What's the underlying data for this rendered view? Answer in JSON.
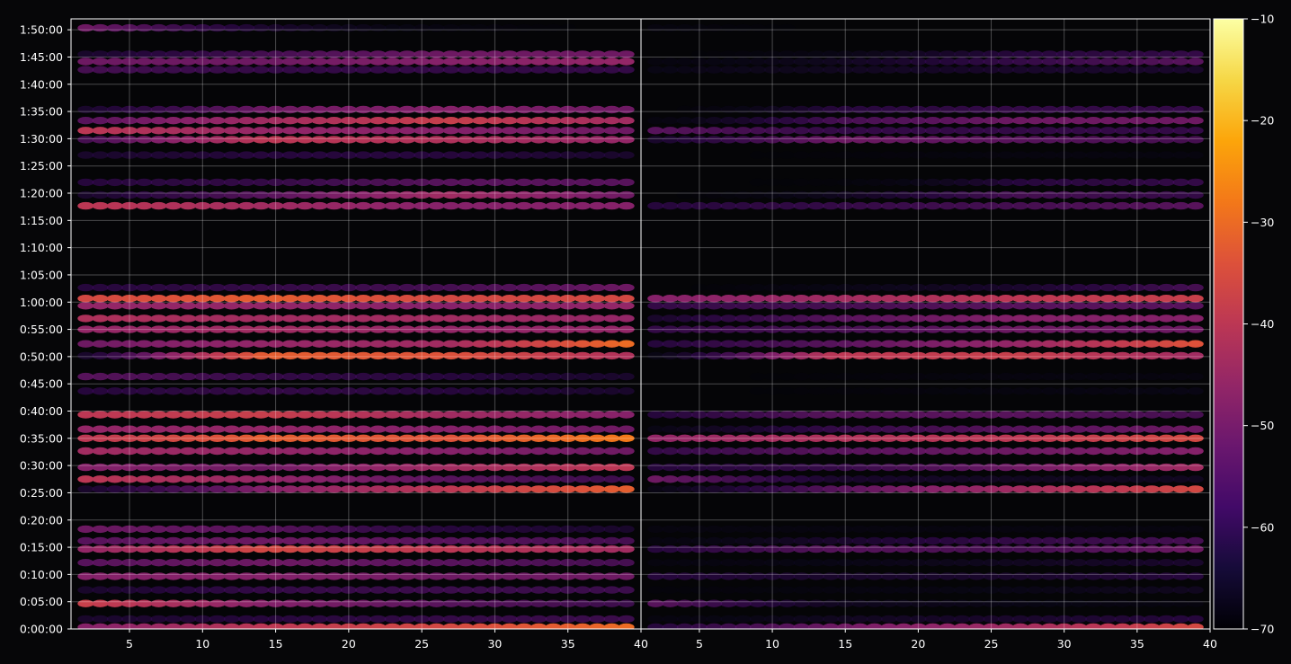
{
  "chart_data": {
    "type": "heatmap",
    "title": "",
    "xlabel": "",
    "ylabel": "",
    "panels": [
      {
        "name": "",
        "xlim": [
          1,
          40
        ],
        "x_ticks": [
          5,
          10,
          15,
          20,
          25,
          30,
          35,
          40
        ]
      },
      {
        "name": "",
        "xlim": [
          1,
          40
        ],
        "x_ticks": [
          5,
          10,
          15,
          20,
          25,
          30,
          35,
          40
        ]
      }
    ],
    "x_tick_labels_left": [
      "5",
      "10",
      "15",
      "20",
      "25",
      "30",
      "35",
      "40"
    ],
    "x_tick_labels_right": [
      "5",
      "10",
      "15",
      "20",
      "25",
      "30",
      "35",
      "40"
    ],
    "y_unit": "seconds",
    "ylim": [
      0,
      6720
    ],
    "y_ticks": [
      0,
      300,
      600,
      900,
      1200,
      1500,
      1800,
      2100,
      2400,
      2700,
      3000,
      3300,
      3600,
      3900,
      4200,
      4500,
      4800,
      5100,
      5400,
      5700,
      6000,
      6300,
      6600
    ],
    "y_tick_labels": [
      "0:00:00",
      "0:05:00",
      "0:10:00",
      "0:15:00",
      "0:20:00",
      "0:25:00",
      "0:30:00",
      "0:35:00",
      "0:40:00",
      "0:45:00",
      "0:50:00",
      "0:55:00",
      "1:00:00",
      "1:05:00",
      "1:10:00",
      "1:15:00",
      "1:20:00",
      "1:25:00",
      "1:30:00",
      "1:35:00",
      "1:40:00",
      "1:45:00",
      "1:50:00"
    ],
    "colorbar": {
      "cmap": "inferno",
      "range": [
        -70,
        -10
      ],
      "ticks": [
        -70,
        -60,
        -50,
        -40,
        -30,
        -20,
        -10
      ],
      "tick_labels": [
        "−70",
        "−60",
        "−50",
        "−40",
        "−30",
        "−20",
        "−10"
      ]
    },
    "bands": [
      {
        "t": 20,
        "left": [
          -48,
          -40,
          -36,
          -30
        ],
        "right": [
          -58,
          -50,
          -44,
          -36
        ]
      },
      {
        "t": 110,
        "left": [
          -60,
          -58,
          -56,
          -55
        ],
        "right": [
          -66,
          -62,
          -60,
          -58
        ]
      },
      {
        "t": 280,
        "left": [
          -38,
          -48,
          -52,
          -55
        ],
        "right": [
          -52,
          -62,
          -64,
          -66
        ]
      },
      {
        "t": 430,
        "left": [
          -60,
          -56,
          -55,
          -55
        ],
        "right": [
          -68,
          -66,
          -64,
          -62
        ]
      },
      {
        "t": 580,
        "left": [
          -48,
          -48,
          -50,
          -50
        ],
        "right": [
          -58,
          -60,
          -60,
          -58
        ]
      },
      {
        "t": 730,
        "left": [
          -52,
          -50,
          -52,
          -54
        ],
        "right": [
          -66,
          -64,
          -62,
          -60
        ]
      },
      {
        "t": 880,
        "left": [
          -46,
          -36,
          -40,
          -44
        ],
        "right": [
          -58,
          -52,
          -54,
          -50
        ]
      },
      {
        "t": 970,
        "left": [
          -52,
          -50,
          -52,
          -54
        ],
        "right": [
          -66,
          -60,
          -56,
          -54
        ]
      },
      {
        "t": 1100,
        "left": [
          -50,
          -52,
          -58,
          -60
        ],
        "right": [
          -66,
          -66,
          -66,
          -66
        ]
      },
      {
        "t": 1540,
        "left": [
          -60,
          -48,
          -40,
          -32
        ],
        "right": [
          -64,
          -52,
          -44,
          -36
        ]
      },
      {
        "t": 1650,
        "left": [
          -40,
          -46,
          -52,
          -55
        ],
        "right": [
          -50,
          -60,
          -62,
          -62
        ]
      },
      {
        "t": 1780,
        "left": [
          -48,
          -50,
          -44,
          -40
        ],
        "right": [
          -58,
          -56,
          -50,
          -44
        ]
      },
      {
        "t": 1960,
        "left": [
          -44,
          -46,
          -48,
          -50
        ],
        "right": [
          -56,
          -52,
          -50,
          -48
        ]
      },
      {
        "t": 2100,
        "left": [
          -40,
          -32,
          -34,
          -28
        ],
        "right": [
          -46,
          -42,
          -40,
          -36
        ]
      },
      {
        "t": 2200,
        "left": [
          -46,
          -46,
          -48,
          -50
        ],
        "right": [
          -64,
          -56,
          -52,
          -50
        ]
      },
      {
        "t": 2360,
        "left": [
          -40,
          -38,
          -44,
          -48
        ],
        "right": [
          -58,
          -52,
          -52,
          -54
        ]
      },
      {
        "t": 2620,
        "left": [
          -58,
          -56,
          -58,
          -60
        ],
        "right": [
          -70,
          -68,
          -66,
          -64
        ]
      },
      {
        "t": 2780,
        "left": [
          -52,
          -56,
          -58,
          -60
        ],
        "right": [
          -70,
          -68,
          -66,
          -66
        ]
      },
      {
        "t": 3010,
        "left": [
          -60,
          -32,
          -34,
          -42
        ],
        "right": [
          -64,
          -40,
          -38,
          -44
        ]
      },
      {
        "t": 3140,
        "left": [
          -50,
          -46,
          -44,
          -30
        ],
        "right": [
          -58,
          -52,
          -46,
          -34
        ]
      },
      {
        "t": 3300,
        "left": [
          -46,
          -44,
          -46,
          -46
        ],
        "right": [
          -56,
          -54,
          -50,
          -50
        ]
      },
      {
        "t": 3420,
        "left": [
          -42,
          -44,
          -44,
          -46
        ],
        "right": [
          -60,
          -52,
          -48,
          -48
        ]
      },
      {
        "t": 3560,
        "left": [
          -46,
          -46,
          -48,
          -46
        ],
        "right": [
          -56,
          -54,
          -52,
          -52
        ]
      },
      {
        "t": 3640,
        "left": [
          -36,
          -32,
          -36,
          -36
        ],
        "right": [
          -48,
          -44,
          -40,
          -38
        ]
      },
      {
        "t": 3760,
        "left": [
          -58,
          -56,
          -54,
          -50
        ],
        "right": [
          -70,
          -64,
          -60,
          -54
        ]
      },
      {
        "t": 4660,
        "left": [
          -40,
          -44,
          -48,
          -48
        ],
        "right": [
          -58,
          -56,
          -54,
          -52
        ]
      },
      {
        "t": 4780,
        "left": [
          -60,
          -52,
          -44,
          -50
        ],
        "right": [
          -70,
          -62,
          -54,
          -56
        ]
      },
      {
        "t": 4920,
        "left": [
          -58,
          -56,
          -52,
          -52
        ],
        "right": [
          -70,
          -68,
          -58,
          -56
        ]
      },
      {
        "t": 5220,
        "left": [
          -60,
          -58,
          -58,
          -60
        ],
        "right": [
          -70,
          -68,
          -66,
          -66
        ]
      },
      {
        "t": 5390,
        "left": [
          -54,
          -40,
          -42,
          -46
        ],
        "right": [
          -60,
          -50,
          -52,
          -54
        ]
      },
      {
        "t": 5490,
        "left": [
          -40,
          -46,
          -48,
          -50
        ],
        "right": [
          -52,
          -56,
          -56,
          -56
        ]
      },
      {
        "t": 5600,
        "left": [
          -52,
          -44,
          -38,
          -44
        ],
        "right": [
          -66,
          -54,
          -50,
          -50
        ]
      },
      {
        "t": 5720,
        "left": [
          -60,
          -50,
          -48,
          -50
        ],
        "right": [
          -70,
          -58,
          -56,
          -56
        ]
      },
      {
        "t": 6160,
        "left": [
          -54,
          -56,
          -56,
          -56
        ],
        "right": [
          -64,
          -62,
          -60,
          -60
        ]
      },
      {
        "t": 6250,
        "left": [
          -50,
          -50,
          -48,
          -46
        ],
        "right": [
          -66,
          -62,
          -56,
          -52
        ]
      },
      {
        "t": 6330,
        "left": [
          -60,
          -54,
          -50,
          -50
        ],
        "right": [
          -70,
          -64,
          -58,
          -56
        ]
      },
      {
        "t": 6620,
        "left": [
          -50,
          -60,
          -66,
          -70
        ],
        "right": [
          -66,
          -70,
          -70,
          -70
        ]
      }
    ]
  }
}
